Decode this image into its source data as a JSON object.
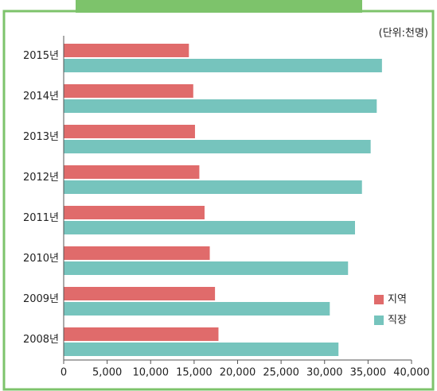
{
  "chart_data": {
    "type": "hbar",
    "unit_label": "(단위:천명)",
    "categories": [
      "2015년",
      "2014년",
      "2013년",
      "2012년",
      "2011년",
      "2010년",
      "2009년",
      "2008년"
    ],
    "series": [
      {
        "name": "지역",
        "color": "#e06b6b",
        "values": [
          14400,
          14900,
          15100,
          15600,
          16200,
          16800,
          17400,
          17800
        ]
      },
      {
        "name": "직장",
        "color": "#76c4bd",
        "values": [
          36600,
          36000,
          35300,
          34300,
          33500,
          32700,
          30600,
          31600
        ]
      }
    ],
    "xlim": [
      0,
      40000
    ],
    "xticks": [
      0,
      {
        "value": 5000,
        "label": "5,000"
      },
      {
        "value": 10000,
        "label": "10,000"
      },
      {
        "value": 15000,
        "label": "15,000"
      },
      {
        "value": 20000,
        "label": "20,000"
      },
      {
        "value": 25000,
        "label": "25,000"
      },
      {
        "value": 30000,
        "label": "30,000"
      },
      {
        "value": 35000,
        "label": "35,000"
      },
      {
        "value": 40000,
        "label": "40,000"
      }
    ],
    "legend": "right"
  }
}
